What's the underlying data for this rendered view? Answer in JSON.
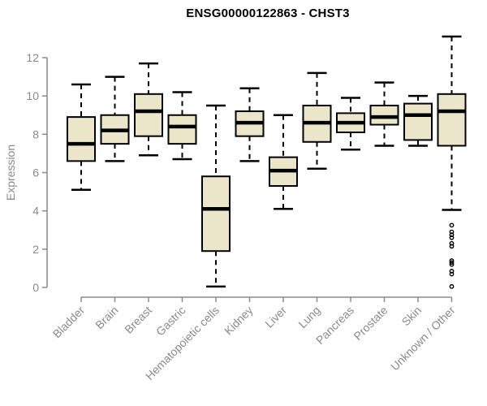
{
  "chart_data": {
    "type": "box",
    "title": "ENSG00000122863 - CHST3",
    "xlabel": "",
    "ylabel": "Expression",
    "ylim": [
      0,
      13.5
    ],
    "yticks": [
      0,
      2,
      4,
      6,
      8,
      10,
      12
    ],
    "grid": false,
    "legend": false,
    "categories": [
      "Bladder",
      "Brain",
      "Breast",
      "Gastric",
      "Hematopoietic cells",
      "Kidney",
      "Liver",
      "Lung",
      "Pancreas",
      "Prostate",
      "Skin",
      "Unknown / Other"
    ],
    "boxes": [
      {
        "category": "Bladder",
        "whisker_low": 5.1,
        "q1": 6.6,
        "median": 7.5,
        "q3": 8.9,
        "whisker_high": 10.6,
        "outliers": []
      },
      {
        "category": "Brain",
        "whisker_low": 6.6,
        "q1": 7.5,
        "median": 8.2,
        "q3": 9.0,
        "whisker_high": 11.0,
        "outliers": []
      },
      {
        "category": "Breast",
        "whisker_low": 6.9,
        "q1": 7.9,
        "median": 9.2,
        "q3": 10.1,
        "whisker_high": 11.7,
        "outliers": []
      },
      {
        "category": "Gastric",
        "whisker_low": 6.7,
        "q1": 7.5,
        "median": 8.4,
        "q3": 9.0,
        "whisker_high": 10.2,
        "outliers": []
      },
      {
        "category": "Hematopoietic cells",
        "whisker_low": 0.05,
        "q1": 1.9,
        "median": 4.1,
        "q3": 5.8,
        "whisker_high": 9.5,
        "outliers": []
      },
      {
        "category": "Kidney",
        "whisker_low": 6.6,
        "q1": 7.9,
        "median": 8.6,
        "q3": 9.2,
        "whisker_high": 10.4,
        "outliers": []
      },
      {
        "category": "Liver",
        "whisker_low": 4.1,
        "q1": 5.3,
        "median": 6.1,
        "q3": 6.8,
        "whisker_high": 9.0,
        "outliers": []
      },
      {
        "category": "Lung",
        "whisker_low": 6.2,
        "q1": 7.6,
        "median": 8.6,
        "q3": 9.5,
        "whisker_high": 11.2,
        "outliers": []
      },
      {
        "category": "Pancreas",
        "whisker_low": 7.2,
        "q1": 8.1,
        "median": 8.6,
        "q3": 9.1,
        "whisker_high": 9.9,
        "outliers": []
      },
      {
        "category": "Prostate",
        "whisker_low": 7.4,
        "q1": 8.5,
        "median": 8.9,
        "q3": 9.5,
        "whisker_high": 10.7,
        "outliers": []
      },
      {
        "category": "Skin",
        "whisker_low": 7.4,
        "q1": 7.7,
        "median": 9.0,
        "q3": 9.6,
        "whisker_high": 10.0,
        "outliers": []
      },
      {
        "category": "Unknown / Other",
        "whisker_low": 4.05,
        "q1": 7.4,
        "median": 9.2,
        "q3": 10.1,
        "whisker_high": 13.1,
        "outliers": [
          3.25,
          2.9,
          2.75,
          2.6,
          2.3,
          2.15,
          1.4,
          1.3,
          1.2,
          0.85,
          0.7,
          0.05
        ]
      }
    ],
    "colors": {
      "box_fill": "#EBE5C9",
      "box_border": "#000000",
      "median": "#000000",
      "whisker": "#000000",
      "axis": "#8A8A8A",
      "tick_label": "#8A8A8A",
      "title": "#000000",
      "background": "#FFFFFF"
    }
  }
}
